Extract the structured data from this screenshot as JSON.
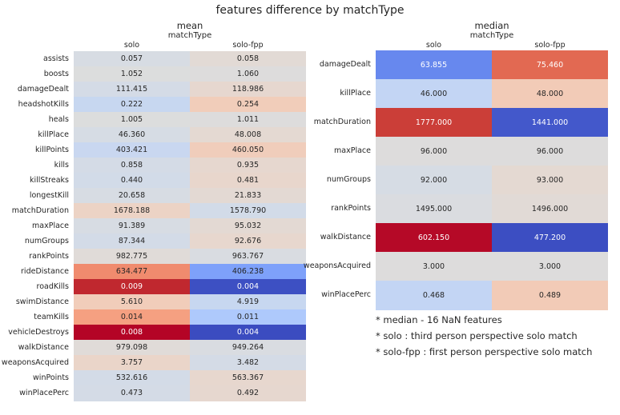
{
  "title": "features difference by matchType",
  "charts": [
    {
      "type": "heatmap",
      "title": "mean",
      "xlabel": "matchType",
      "columns": [
        "solo",
        "solo-fpp"
      ],
      "rows": [
        {
          "label": "assists",
          "values": [
            "0.057",
            "0.058"
          ]
        },
        {
          "label": "boosts",
          "values": [
            "1.052",
            "1.060"
          ]
        },
        {
          "label": "damageDealt",
          "values": [
            "111.415",
            "118.986"
          ]
        },
        {
          "label": "headshotKills",
          "values": [
            "0.222",
            "0.254"
          ]
        },
        {
          "label": "heals",
          "values": [
            "1.005",
            "1.011"
          ]
        },
        {
          "label": "killPlace",
          "values": [
            "46.360",
            "48.008"
          ]
        },
        {
          "label": "killPoints",
          "values": [
            "403.421",
            "460.050"
          ]
        },
        {
          "label": "kills",
          "values": [
            "0.858",
            "0.935"
          ]
        },
        {
          "label": "killStreaks",
          "values": [
            "0.440",
            "0.481"
          ]
        },
        {
          "label": "longestKill",
          "values": [
            "20.658",
            "21.833"
          ]
        },
        {
          "label": "matchDuration",
          "values": [
            "1678.188",
            "1578.790"
          ]
        },
        {
          "label": "maxPlace",
          "values": [
            "91.389",
            "95.032"
          ]
        },
        {
          "label": "numGroups",
          "values": [
            "87.344",
            "92.676"
          ]
        },
        {
          "label": "rankPoints",
          "values": [
            "982.775",
            "963.767"
          ]
        },
        {
          "label": "rideDistance",
          "values": [
            "634.477",
            "406.238"
          ]
        },
        {
          "label": "roadKills",
          "values": [
            "0.009",
            "0.004"
          ]
        },
        {
          "label": "swimDistance",
          "values": [
            "5.610",
            "4.919"
          ]
        },
        {
          "label": "teamKills",
          "values": [
            "0.014",
            "0.011"
          ]
        },
        {
          "label": "vehicleDestroys",
          "values": [
            "0.008",
            "0.004"
          ]
        },
        {
          "label": "walkDistance",
          "values": [
            "979.098",
            "949.264"
          ]
        },
        {
          "label": "weaponsAcquired",
          "values": [
            "3.757",
            "3.482"
          ]
        },
        {
          "label": "winPoints",
          "values": [
            "532.616",
            "563.367"
          ]
        },
        {
          "label": "winPlacePerc",
          "values": [
            "0.473",
            "0.492"
          ]
        }
      ]
    },
    {
      "type": "heatmap",
      "title": "median",
      "xlabel": "matchType",
      "columns": [
        "solo",
        "solo-fpp"
      ],
      "rows": [
        {
          "label": "damageDealt",
          "values": [
            "63.855",
            "75.460"
          ]
        },
        {
          "label": "killPlace",
          "values": [
            "46.000",
            "48.000"
          ]
        },
        {
          "label": "matchDuration",
          "values": [
            "1777.000",
            "1441.000"
          ]
        },
        {
          "label": "maxPlace",
          "values": [
            "96.000",
            "96.000"
          ]
        },
        {
          "label": "numGroups",
          "values": [
            "92.000",
            "93.000"
          ]
        },
        {
          "label": "rankPoints",
          "values": [
            "1495.000",
            "1496.000"
          ]
        },
        {
          "label": "walkDistance",
          "values": [
            "602.150",
            "477.200"
          ]
        },
        {
          "label": "weaponsAcquired",
          "values": [
            "3.000",
            "3.000"
          ]
        },
        {
          "label": "winPlacePerc",
          "values": [
            "0.468",
            "0.489"
          ]
        }
      ]
    }
  ],
  "colors": {
    "mean": [
      [
        "#d7dce3",
        "#e2dad5"
      ],
      [
        "#dcdddd",
        "#dddcdc"
      ],
      [
        "#d4dbe6",
        "#e6d7cf"
      ],
      [
        "#c7d7f0",
        "#f1cdba"
      ],
      [
        "#dcdddd",
        "#dddcdc"
      ],
      [
        "#d6dce4",
        "#e4d9d2"
      ],
      [
        "#c9d7f0",
        "#f0cdbb"
      ],
      [
        "#d4dbe6",
        "#e6d7cf"
      ],
      [
        "#d2dbe8",
        "#e8d6cc"
      ],
      [
        "#d7dce3",
        "#e3d9d3"
      ],
      [
        "#ecd3c5",
        "#d2dbe8"
      ],
      [
        "#d7dce3",
        "#e3d9d3"
      ],
      [
        "#d3dbe7",
        "#e7d7ce"
      ],
      [
        "#e0dbd8",
        "#d9dce1"
      ],
      [
        "#f08b6e",
        "#7ea1fa"
      ],
      [
        "#c0282f",
        "#3d50c3"
      ],
      [
        "#f1cdba",
        "#c7d7f0"
      ],
      [
        "#f5a081",
        "#aec9fc"
      ],
      [
        "#b40426",
        "#3b4cc0"
      ],
      [
        "#e0dbd8",
        "#d9dce1"
      ],
      [
        "#ead5c9",
        "#d4dbe6"
      ],
      [
        "#d3dbe7",
        "#e7d7ce"
      ],
      [
        "#d4dbe6",
        "#e6d7cf"
      ]
    ],
    "median": [
      [
        "#6788ee",
        "#e26952"
      ],
      [
        "#c3d5f4",
        "#f2cbb7"
      ],
      [
        "#cb3e38",
        "#4358cb"
      ],
      [
        "#dddcdc",
        "#dddcdc"
      ],
      [
        "#d6dce4",
        "#e4d9d2"
      ],
      [
        "#dadce0",
        "#e1dad6"
      ],
      [
        "#b50927",
        "#3c4ec2"
      ],
      [
        "#dddcdc",
        "#dddcdc"
      ],
      [
        "#c3d5f4",
        "#f2cbb7"
      ]
    ]
  },
  "text_colors": {
    "dark": "#262626",
    "light": "#ffffff"
  },
  "notes": [
    "* median - 16 NaN features",
    "* solo : third person perspective solo match",
    "* solo-fpp : first person perspective solo match"
  ]
}
